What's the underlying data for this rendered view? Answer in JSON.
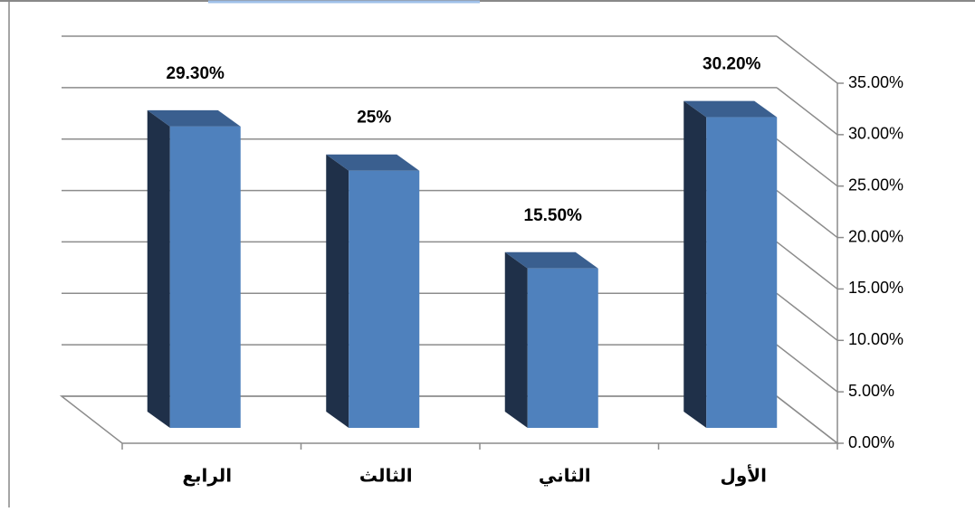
{
  "chart_data": {
    "type": "bar3d",
    "categories": [
      "الأول",
      "الثاني",
      "الثالث",
      "الرابع"
    ],
    "values": [
      30.2,
      15.5,
      25,
      29.3
    ],
    "value_labels": [
      "30.20%",
      "15.50%",
      "25%",
      "29.30%"
    ],
    "color": "#4f81bd",
    "ylim": [
      0,
      35
    ],
    "yticks": [
      {
        "value": 0,
        "label": "0.00%"
      },
      {
        "value": 5,
        "label": "5.00%"
      },
      {
        "value": 10,
        "label": "10.00%"
      },
      {
        "value": 15,
        "label": "15.00%"
      },
      {
        "value": 20,
        "label": "20.00%"
      },
      {
        "value": 25,
        "label": "25.00%"
      },
      {
        "value": 30,
        "label": "30.00%"
      },
      {
        "value": 35,
        "label": "35.00%"
      }
    ],
    "grid": true
  }
}
